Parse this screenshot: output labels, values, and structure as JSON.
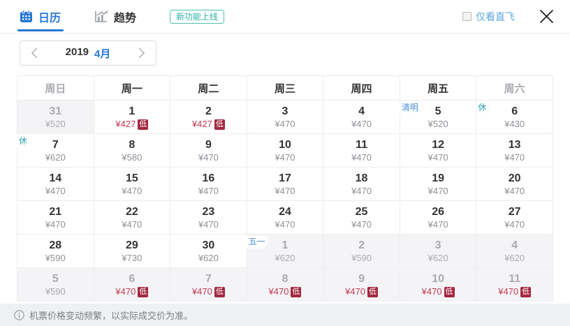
{
  "header": {
    "tabs": [
      {
        "label": "日历",
        "icon": "calendar-icon",
        "active": true
      },
      {
        "label": "趋势",
        "icon": "trend-icon",
        "active": false
      }
    ],
    "new_feature_badge": "新功能上线",
    "direct_only_label": "仅看直飞",
    "direct_only_checked": false
  },
  "month_nav": {
    "year": "2019",
    "month": "4月"
  },
  "weekdays": [
    {
      "label": "周日",
      "muted": true
    },
    {
      "label": "周一",
      "muted": false
    },
    {
      "label": "周二",
      "muted": false
    },
    {
      "label": "周三",
      "muted": false
    },
    {
      "label": "周四",
      "muted": false
    },
    {
      "label": "周五",
      "muted": false
    },
    {
      "label": "周六",
      "muted": true
    }
  ],
  "calendar": {
    "low_badge_label": "低",
    "rows": [
      [
        {
          "day": "31",
          "price": "¥520",
          "muted": true
        },
        {
          "day": "1",
          "price": "¥427",
          "low": true
        },
        {
          "day": "2",
          "price": "¥427",
          "low": true
        },
        {
          "day": "3",
          "price": "¥470"
        },
        {
          "day": "4",
          "price": "¥470"
        },
        {
          "day": "5",
          "price": "¥520",
          "tag": "清明",
          "tag_type": "holiday"
        },
        {
          "day": "6",
          "price": "¥430",
          "tag": "休",
          "tag_type": "rest"
        }
      ],
      [
        {
          "day": "7",
          "price": "¥620",
          "tag": "休",
          "tag_type": "rest"
        },
        {
          "day": "8",
          "price": "¥580"
        },
        {
          "day": "9",
          "price": "¥470"
        },
        {
          "day": "10",
          "price": "¥470"
        },
        {
          "day": "11",
          "price": "¥470"
        },
        {
          "day": "12",
          "price": "¥470"
        },
        {
          "day": "13",
          "price": "¥470"
        }
      ],
      [
        {
          "day": "14",
          "price": "¥470"
        },
        {
          "day": "15",
          "price": "¥470"
        },
        {
          "day": "16",
          "price": "¥470"
        },
        {
          "day": "17",
          "price": "¥470"
        },
        {
          "day": "18",
          "price": "¥470"
        },
        {
          "day": "19",
          "price": "¥470"
        },
        {
          "day": "20",
          "price": "¥470"
        }
      ],
      [
        {
          "day": "21",
          "price": "¥470"
        },
        {
          "day": "22",
          "price": "¥470"
        },
        {
          "day": "23",
          "price": "¥470"
        },
        {
          "day": "24",
          "price": "¥470"
        },
        {
          "day": "25",
          "price": "¥470"
        },
        {
          "day": "26",
          "price": "¥470"
        },
        {
          "day": "27",
          "price": "¥470"
        }
      ],
      [
        {
          "day": "28",
          "price": "¥590"
        },
        {
          "day": "29",
          "price": "¥730"
        },
        {
          "day": "30",
          "price": "¥620"
        },
        {
          "day": "1",
          "price": "¥620",
          "muted": true,
          "tag": "五一",
          "tag_type": "holiday"
        },
        {
          "day": "2",
          "price": "¥590",
          "muted": true
        },
        {
          "day": "3",
          "price": "¥620",
          "muted": true
        },
        {
          "day": "4",
          "price": "¥620",
          "muted": true
        }
      ],
      [
        {
          "day": "5",
          "price": "¥590",
          "muted": true
        },
        {
          "day": "6",
          "price": "¥470",
          "muted": true,
          "low": true
        },
        {
          "day": "7",
          "price": "¥470",
          "muted": true,
          "low": true
        },
        {
          "day": "8",
          "price": "¥470",
          "muted": true,
          "low": true
        },
        {
          "day": "9",
          "price": "¥470",
          "muted": true,
          "low": true
        },
        {
          "day": "10",
          "price": "¥470",
          "muted": true,
          "low": true
        },
        {
          "day": "11",
          "price": "¥470",
          "muted": true,
          "low": true
        }
      ]
    ]
  },
  "footer": {
    "notice": "机票价格变动频繁，以实际成交价为准。"
  },
  "colors": {
    "accent_blue": "#2577d4",
    "low_price": "#c23a52",
    "low_badge_bg": "#a32740",
    "rest_tag": "#2aa5b0",
    "holiday_tag": "#4a90d9",
    "direct_only_text": "#5fa8dc",
    "new_badge": "#2ab3a3",
    "muted_cell_bg": "#f4f4f6"
  }
}
